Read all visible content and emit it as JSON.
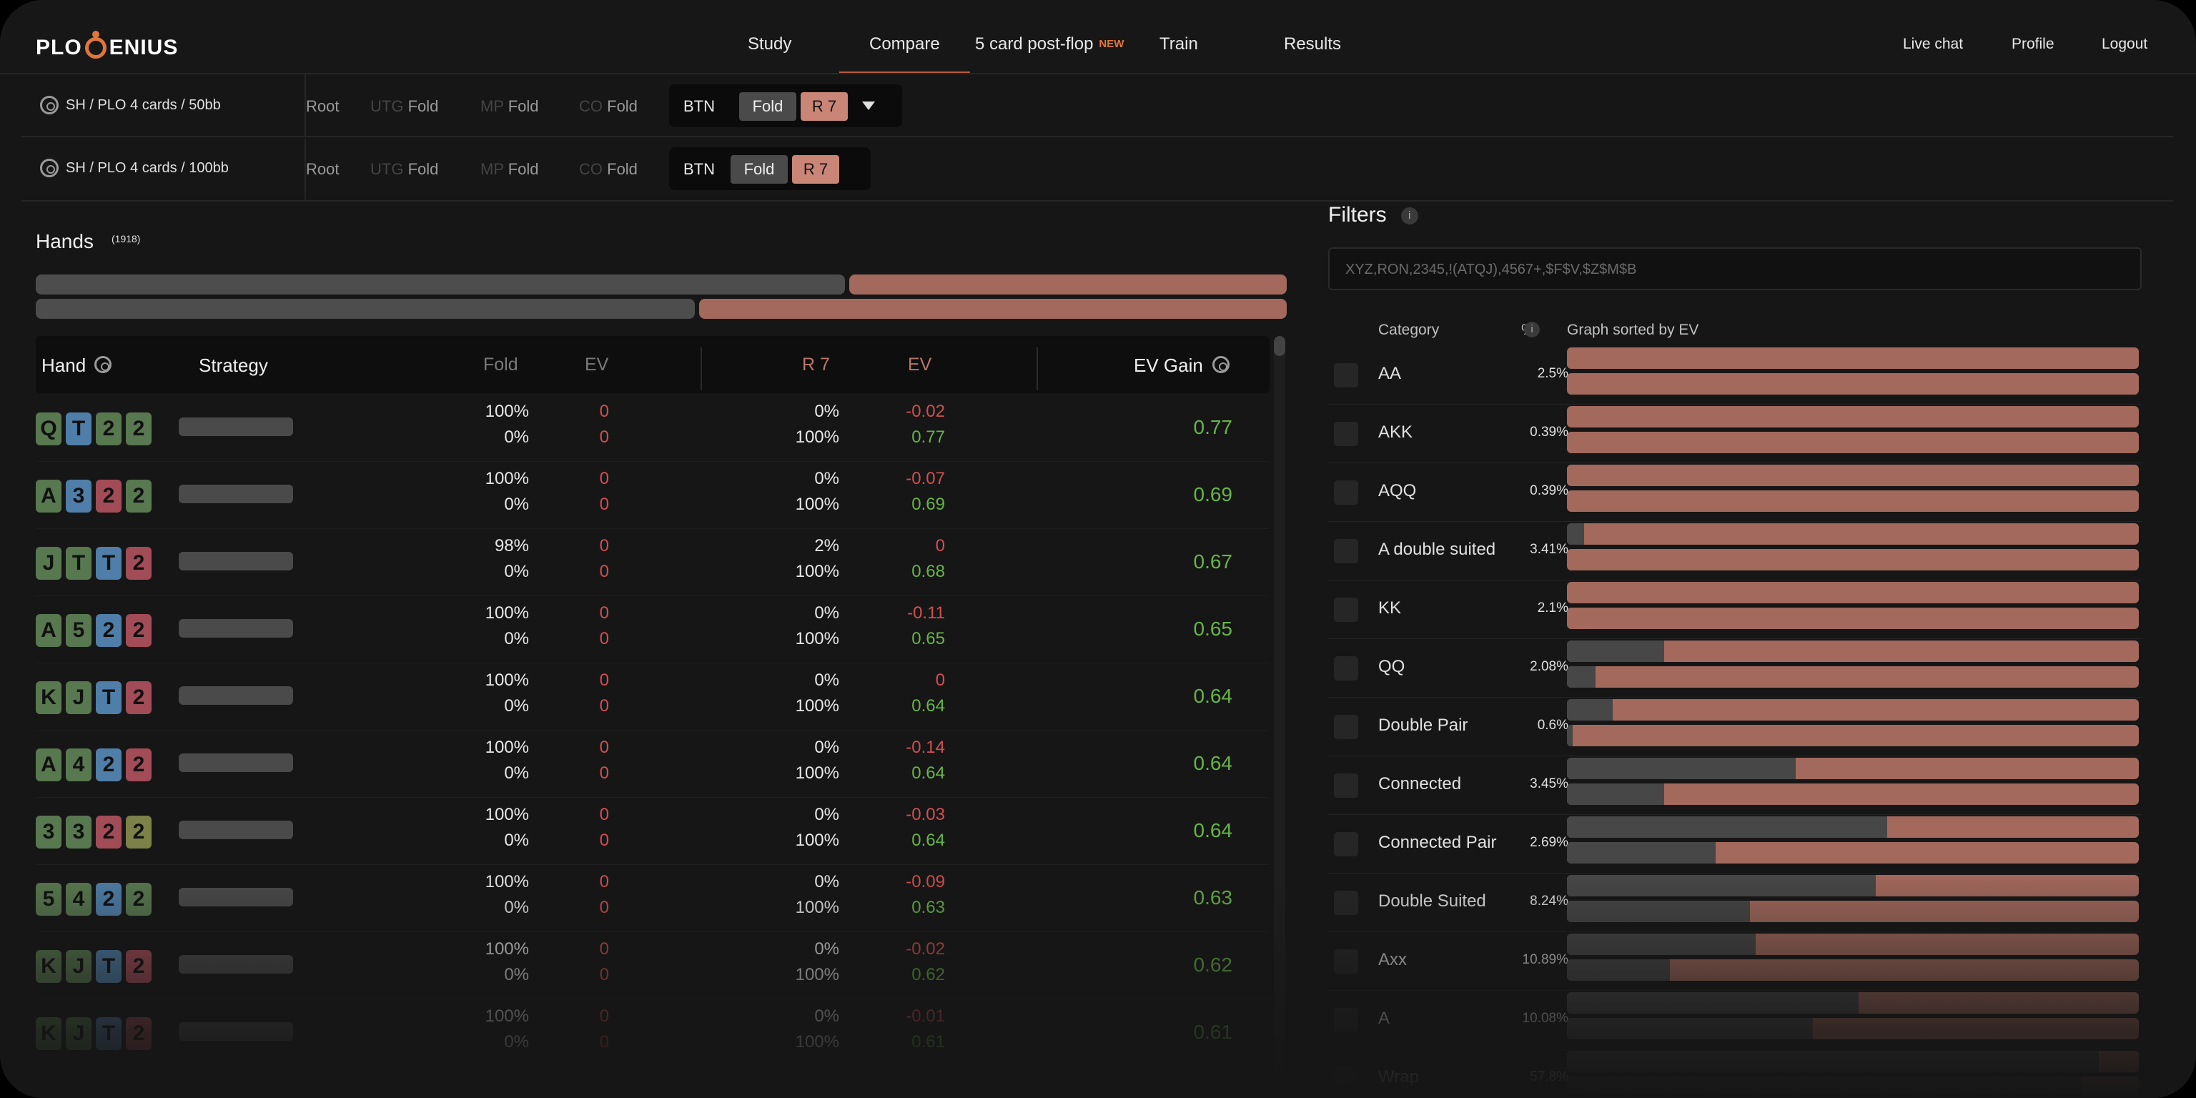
{
  "app": {
    "logo": "PLO GENIUS"
  },
  "nav": {
    "items": [
      "Study",
      "Compare",
      "5 card post-flop",
      "Train",
      "Results"
    ],
    "new_badge": "NEW",
    "right": [
      "Live chat",
      "Profile",
      "Logout"
    ]
  },
  "configs": [
    {
      "label": "SH / PLO 4 cards / 50bb",
      "path": [
        "Root",
        "UTG",
        "Fold",
        "MP",
        "Fold",
        "CO",
        "Fold"
      ],
      "position": "BTN",
      "fold": "Fold",
      "raise": "R 7"
    },
    {
      "label": "SH / PLO 4 cards / 100bb",
      "path": [
        "Root",
        "UTG",
        "Fold",
        "MP",
        "Fold",
        "CO",
        "Fold"
      ],
      "position": "BTN",
      "fold": "Fold",
      "raise": "R 7"
    }
  ],
  "hands": {
    "title": "Hands",
    "count": "(1918)",
    "summary": [
      {
        "fold": 0.65,
        "raise": 0.35
      },
      {
        "fold": 0.53,
        "raise": 0.47
      }
    ],
    "headers": {
      "hand": "Hand",
      "strategy": "Strategy",
      "fold": "Fold",
      "ev": "EV",
      "raise": "R 7",
      "ev2": "EV",
      "gain": "EV Gain"
    },
    "rows": [
      {
        "cards": [
          [
            "Q",
            "g"
          ],
          [
            "T",
            "b"
          ],
          [
            "2",
            "g"
          ],
          [
            "2",
            "g"
          ]
        ],
        "fold": [
          "100%",
          "0%"
        ],
        "fold_ev": [
          "0",
          "0"
        ],
        "raise": [
          "0%",
          "100%"
        ],
        "raise_ev": [
          "-0.02",
          "0.77"
        ],
        "gain": "0.77"
      },
      {
        "cards": [
          [
            "A",
            "g"
          ],
          [
            "3",
            "b"
          ],
          [
            "2",
            "r"
          ],
          [
            "2",
            "g"
          ]
        ],
        "fold": [
          "100%",
          "0%"
        ],
        "fold_ev": [
          "0",
          "0"
        ],
        "raise": [
          "0%",
          "100%"
        ],
        "raise_ev": [
          "-0.07",
          "0.69"
        ],
        "gain": "0.69"
      },
      {
        "cards": [
          [
            "J",
            "g"
          ],
          [
            "T",
            "g"
          ],
          [
            "T",
            "b"
          ],
          [
            "2",
            "r"
          ]
        ],
        "fold": [
          "98%",
          "0%"
        ],
        "fold_ev": [
          "0",
          "0"
        ],
        "raise": [
          "2%",
          "100%"
        ],
        "raise_ev": [
          "0",
          "0.68"
        ],
        "gain": "0.67"
      },
      {
        "cards": [
          [
            "A",
            "g"
          ],
          [
            "5",
            "g"
          ],
          [
            "2",
            "b"
          ],
          [
            "2",
            "r"
          ]
        ],
        "fold": [
          "100%",
          "0%"
        ],
        "fold_ev": [
          "0",
          "0"
        ],
        "raise": [
          "0%",
          "100%"
        ],
        "raise_ev": [
          "-0.11",
          "0.65"
        ],
        "gain": "0.65"
      },
      {
        "cards": [
          [
            "K",
            "g"
          ],
          [
            "J",
            "g"
          ],
          [
            "T",
            "b"
          ],
          [
            "2",
            "r"
          ]
        ],
        "fold": [
          "100%",
          "0%"
        ],
        "fold_ev": [
          "0",
          "0"
        ],
        "raise": [
          "0%",
          "100%"
        ],
        "raise_ev": [
          "0",
          "0.64"
        ],
        "gain": "0.64"
      },
      {
        "cards": [
          [
            "A",
            "g"
          ],
          [
            "4",
            "g"
          ],
          [
            "2",
            "b"
          ],
          [
            "2",
            "r"
          ]
        ],
        "fold": [
          "100%",
          "0%"
        ],
        "fold_ev": [
          "0",
          "0"
        ],
        "raise": [
          "0%",
          "100%"
        ],
        "raise_ev": [
          "-0.14",
          "0.64"
        ],
        "gain": "0.64"
      },
      {
        "cards": [
          [
            "3",
            "g"
          ],
          [
            "3",
            "g"
          ],
          [
            "2",
            "r"
          ],
          [
            "2",
            "y"
          ]
        ],
        "fold": [
          "100%",
          "0%"
        ],
        "fold_ev": [
          "0",
          "0"
        ],
        "raise": [
          "0%",
          "100%"
        ],
        "raise_ev": [
          "-0.03",
          "0.64"
        ],
        "gain": "0.64"
      },
      {
        "cards": [
          [
            "5",
            "g"
          ],
          [
            "4",
            "g"
          ],
          [
            "2",
            "b"
          ],
          [
            "2",
            "g"
          ]
        ],
        "fold": [
          "100%",
          "0%"
        ],
        "fold_ev": [
          "0",
          "0"
        ],
        "raise": [
          "0%",
          "100%"
        ],
        "raise_ev": [
          "-0.09",
          "0.63"
        ],
        "gain": "0.63"
      },
      {
        "cards": [
          [
            "K",
            "g"
          ],
          [
            "J",
            "g"
          ],
          [
            "T",
            "b"
          ],
          [
            "2",
            "r"
          ]
        ],
        "fold": [
          "100%",
          "0%"
        ],
        "fold_ev": [
          "0",
          "0"
        ],
        "raise": [
          "0%",
          "100%"
        ],
        "raise_ev": [
          "-0.02",
          "0.62"
        ],
        "gain": "0.62"
      },
      {
        "cards": [
          [
            "K",
            "g"
          ],
          [
            "J",
            "g"
          ],
          [
            "T",
            "b"
          ],
          [
            "2",
            "r"
          ]
        ],
        "fold": [
          "100%",
          "0%"
        ],
        "fold_ev": [
          "0",
          "0"
        ],
        "raise": [
          "0%",
          "100%"
        ],
        "raise_ev": [
          "-0.01",
          "0.61"
        ],
        "gain": "0.61"
      }
    ]
  },
  "filters": {
    "title": "Filters",
    "query": "XYZ,RON,2345,!(ATQJ),4567+,$F$V,$Z$M$B",
    "headers": {
      "category": "Category",
      "pct": "%",
      "graph": "Graph sorted by EV"
    },
    "rows": [
      {
        "name": "AA",
        "pct": "2.5%",
        "bars": [
          0,
          0
        ]
      },
      {
        "name": "AKK",
        "pct": "0.39%",
        "bars": [
          0,
          0
        ]
      },
      {
        "name": "AQQ",
        "pct": "0.39%",
        "bars": [
          0,
          0
        ]
      },
      {
        "name": "A double suited",
        "pct": "3.41%",
        "bars": [
          0.03,
          0
        ]
      },
      {
        "name": "KK",
        "pct": "2.1%",
        "bars": [
          0,
          0
        ]
      },
      {
        "name": "QQ",
        "pct": "2.08%",
        "bars": [
          0.17,
          0.05
        ]
      },
      {
        "name": "Double Pair",
        "pct": "0.6%",
        "bars": [
          0.08,
          0.01
        ]
      },
      {
        "name": "Connected",
        "pct": "3.45%",
        "bars": [
          0.4,
          0.17
        ]
      },
      {
        "name": "Connected Pair",
        "pct": "2.69%",
        "bars": [
          0.56,
          0.26
        ]
      },
      {
        "name": "Double Suited",
        "pct": "8.24%",
        "bars": [
          0.54,
          0.32
        ]
      },
      {
        "name": "Axx",
        "pct": "10.89%",
        "bars": [
          0.33,
          0.18
        ]
      },
      {
        "name": "A",
        "pct": "10.08%",
        "bars": [
          0.51,
          0.43
        ]
      },
      {
        "name": "Wrap",
        "pct": "57.8%",
        "bars": [
          0.93,
          0.9
        ]
      }
    ]
  }
}
